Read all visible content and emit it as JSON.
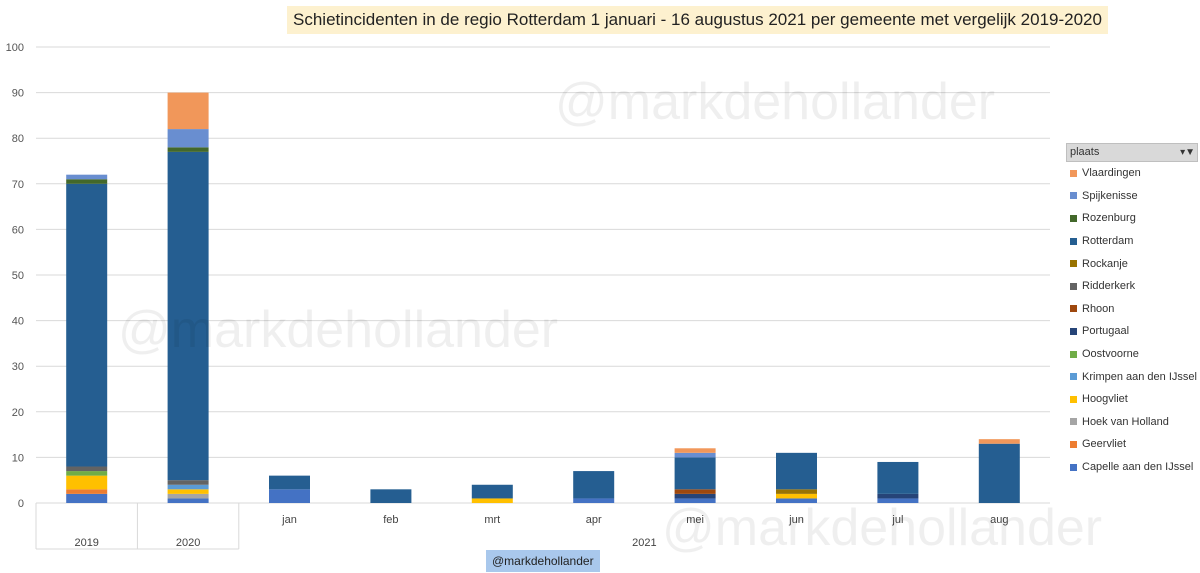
{
  "title": "Schietincidenten in de regio Rotterdam 1 januari - 16 augustus 2021 per gemeente met vergelijk 2019-2020",
  "watermark": "@markdehollander",
  "credit": "@markdehollander",
  "legend": {
    "header": "plaats",
    "filter_icon": "filter-icon",
    "placement": "right"
  },
  "chart_data": {
    "type": "bar",
    "stacked": true,
    "ylim": [
      0,
      100
    ],
    "yticks": [
      "0",
      "10",
      "20",
      "30",
      "40",
      "50",
      "60",
      "70",
      "80",
      "90",
      "100"
    ],
    "grid": true,
    "categories": [
      "2019",
      "2020",
      "jan",
      "feb",
      "mrt",
      "apr",
      "mei",
      "jun",
      "jul",
      "aug"
    ],
    "group_labels": [
      {
        "label": "2019",
        "span": [
          0,
          0
        ]
      },
      {
        "label": "2020",
        "span": [
          1,
          1
        ]
      },
      {
        "label": "2021",
        "span": [
          2,
          9
        ]
      }
    ],
    "series": [
      {
        "name": "Capelle aan den IJssel",
        "color": "#4472c4",
        "values": [
          2,
          1,
          3,
          0,
          0,
          1,
          1,
          1,
          1,
          0
        ]
      },
      {
        "name": "Geervliet",
        "color": "#ed7d31",
        "values": [
          1,
          0,
          0,
          0,
          0,
          0,
          0,
          0,
          0,
          0
        ]
      },
      {
        "name": "Hoek van Holland",
        "color": "#a5a5a5",
        "values": [
          0,
          1,
          0,
          0,
          0,
          0,
          0,
          0,
          0,
          0
        ]
      },
      {
        "name": "Hoogvliet",
        "color": "#ffc000",
        "values": [
          3,
          1,
          0,
          0,
          1,
          0,
          0,
          1,
          0,
          0
        ]
      },
      {
        "name": "Krimpen aan den IJssel",
        "color": "#5b9bd5",
        "values": [
          0,
          1,
          0,
          0,
          0,
          0,
          0,
          0,
          0,
          0
        ]
      },
      {
        "name": "Oostvoorne",
        "color": "#70ad47",
        "values": [
          1,
          0,
          0,
          0,
          0,
          0,
          0,
          0,
          0,
          0
        ]
      },
      {
        "name": "Portugaal",
        "color": "#264478",
        "values": [
          0,
          0,
          0,
          0,
          0,
          0,
          1,
          0,
          1,
          0
        ]
      },
      {
        "name": "Rhoon",
        "color": "#9e480e",
        "values": [
          0,
          0,
          0,
          0,
          0,
          0,
          1,
          0,
          0,
          0
        ]
      },
      {
        "name": "Ridderkerk",
        "color": "#636363",
        "values": [
          1,
          1,
          0,
          0,
          0,
          0,
          0,
          0,
          0,
          0
        ]
      },
      {
        "name": "Rockanje",
        "color": "#997300",
        "values": [
          0,
          0,
          0,
          0,
          0,
          0,
          0,
          1,
          0,
          0
        ]
      },
      {
        "name": "Rotterdam",
        "color": "#255e91",
        "values": [
          62,
          72,
          3,
          3,
          3,
          6,
          7,
          8,
          7,
          13
        ]
      },
      {
        "name": "Rozenburg",
        "color": "#43682b",
        "values": [
          1,
          1,
          0,
          0,
          0,
          0,
          0,
          0,
          0,
          0
        ]
      },
      {
        "name": "Spijkenisse",
        "color": "#698ed0",
        "values": [
          1,
          4,
          0,
          0,
          0,
          0,
          1,
          0,
          0,
          0
        ]
      },
      {
        "name": "Vlaardingen",
        "color": "#f1975a",
        "values": [
          0,
          8,
          0,
          0,
          0,
          0,
          1,
          0,
          0,
          1
        ]
      }
    ]
  }
}
